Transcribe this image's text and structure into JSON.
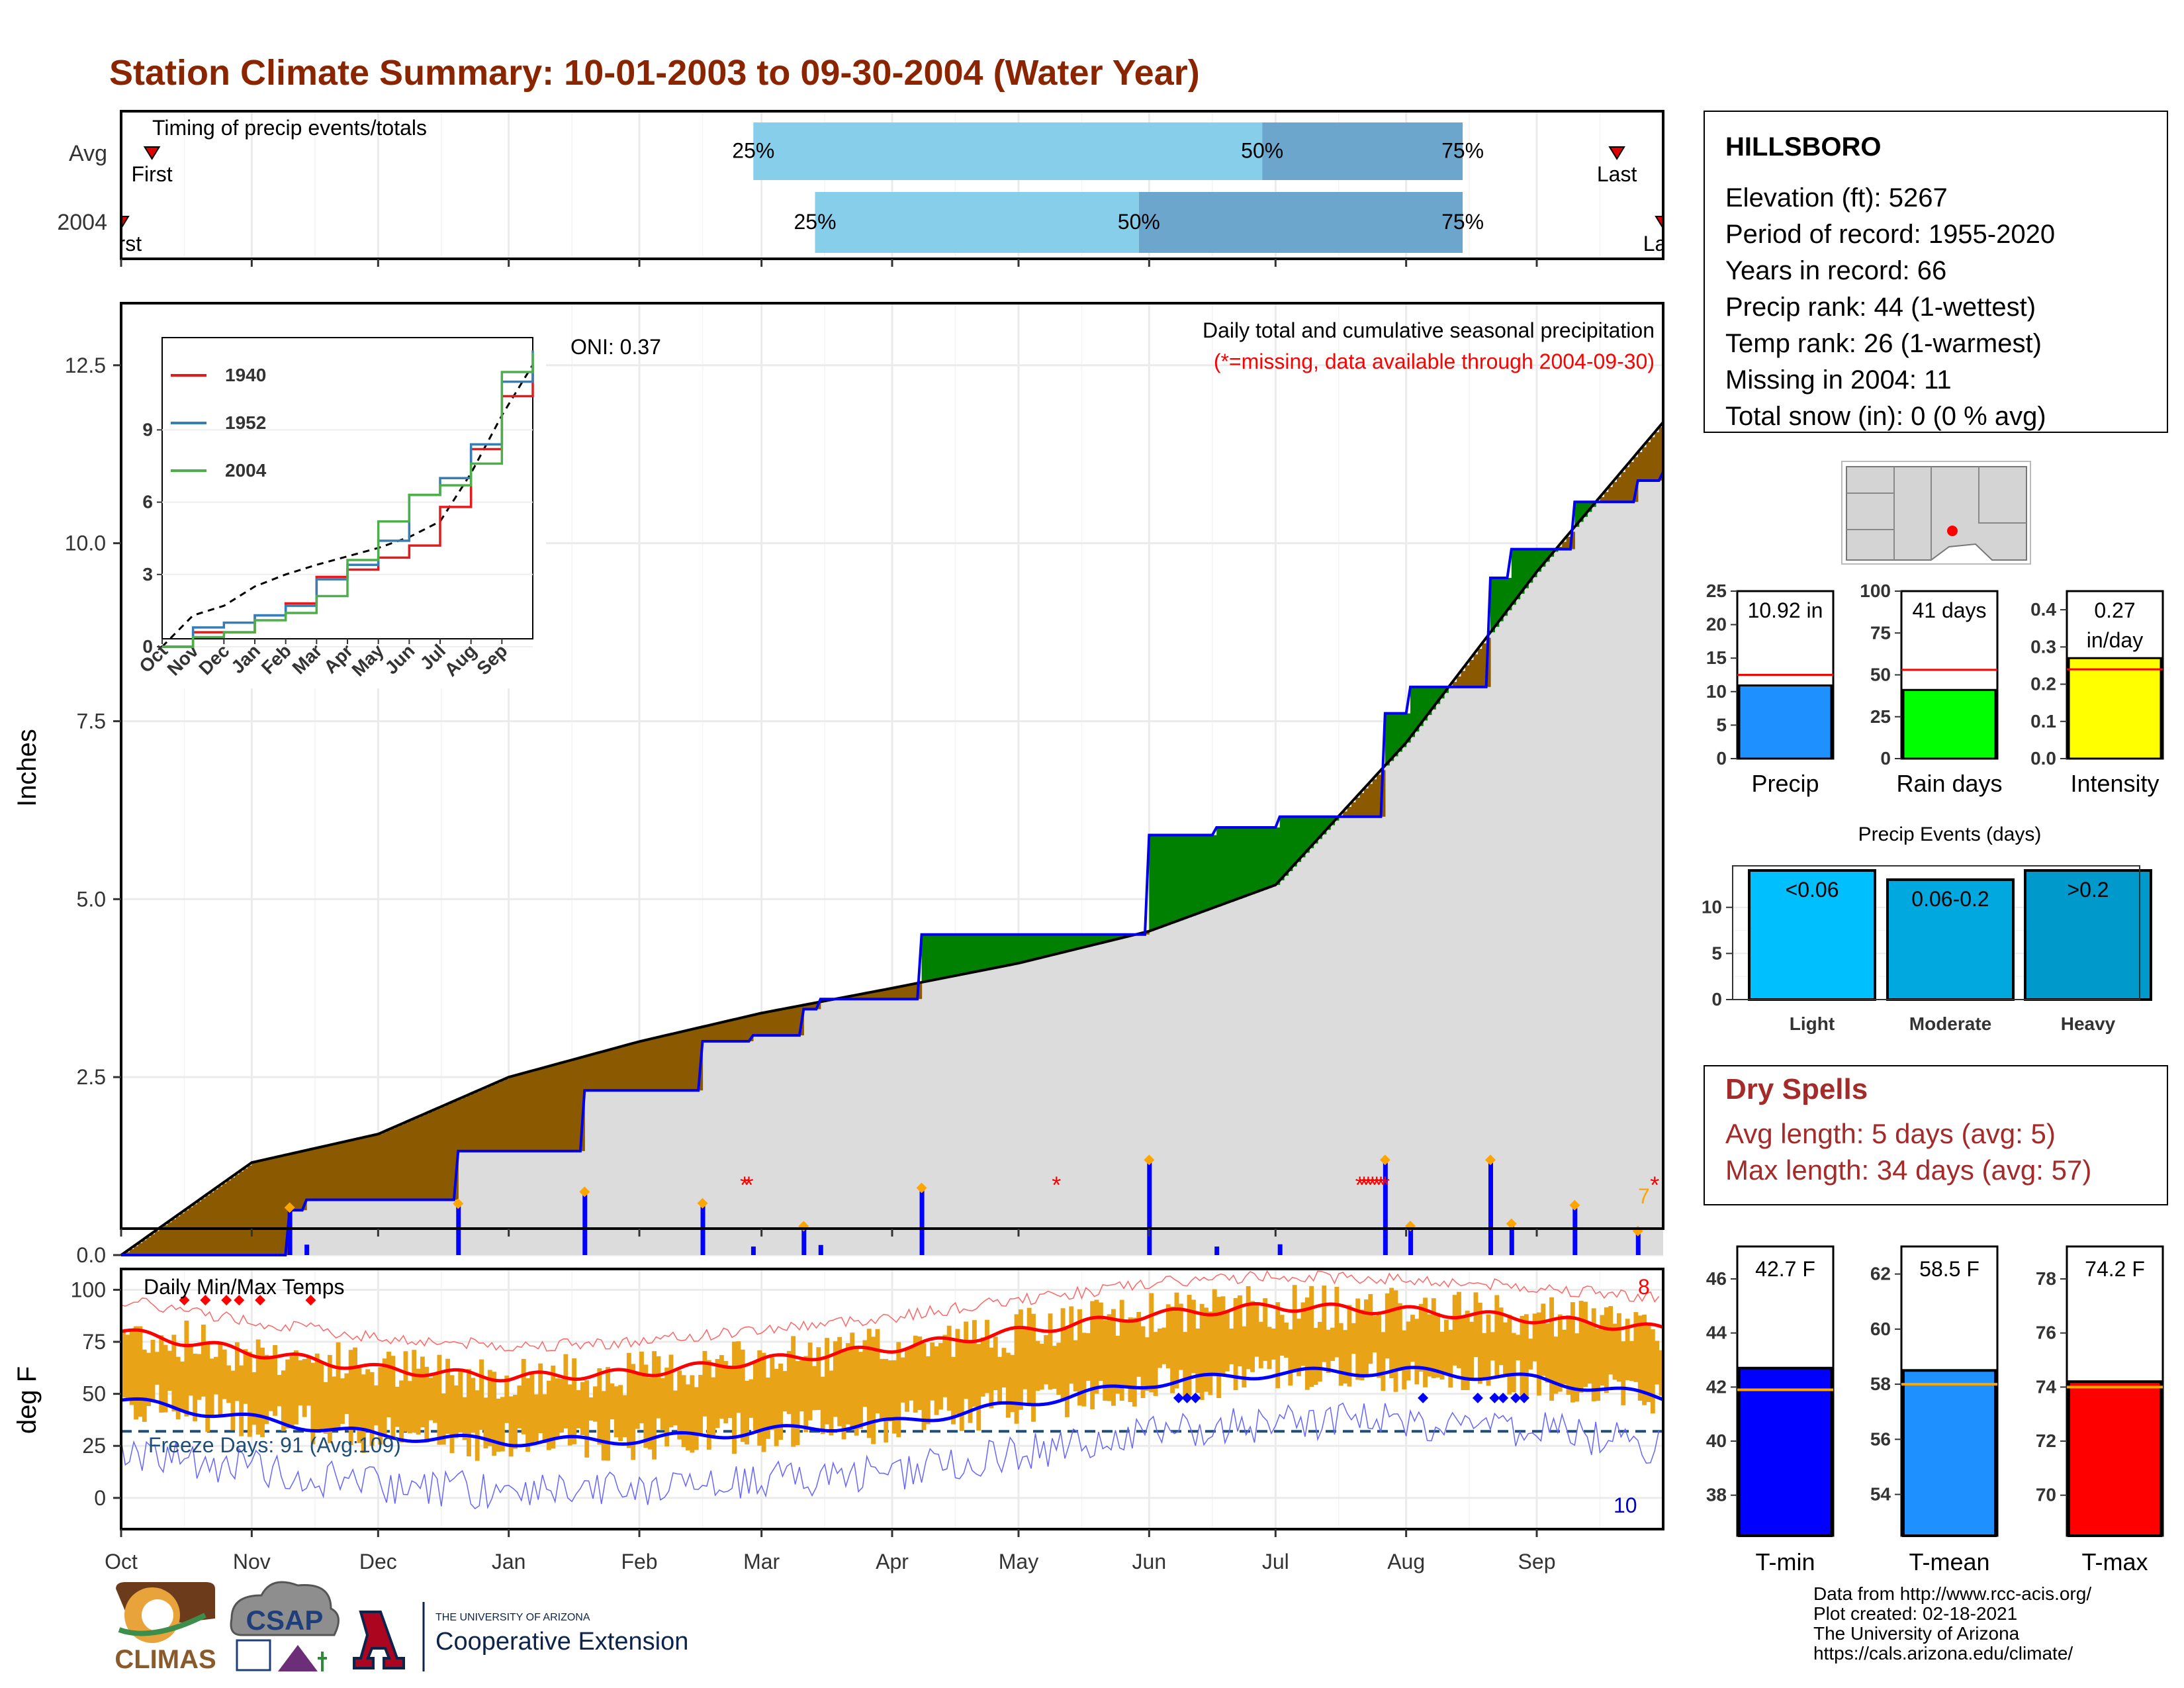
{
  "title": "Station Climate Summary: 10-01-2003 to 09-30-2004 (Water Year)",
  "timing": {
    "label": "Timing of precip events/totals",
    "rows": [
      {
        "name": "Avg",
        "first_label": "First",
        "last_label": "Last",
        "p25": 0.41,
        "p50": 0.74,
        "p75": 0.87,
        "first": 0.02,
        "last": 0.97
      },
      {
        "name": "2004",
        "first_label": "First",
        "last_label": "Last",
        "p25": 0.45,
        "p50": 0.66,
        "p75": 0.87,
        "first": 0.0,
        "last": 1.0
      }
    ],
    "pct_labels": [
      "25%",
      "50%",
      "75%"
    ]
  },
  "precip": {
    "ylabel": "Inches",
    "yticks": [
      "0.0",
      "2.5",
      "5.0",
      "7.5",
      "10.0",
      "12.5"
    ],
    "note1": "Daily total and cumulative seasonal precipitation",
    "note2": "(*=missing, data available through 2004-09-30)",
    "oni": "ONI: 0.37",
    "corner_count": "7"
  },
  "inset": {
    "yticks": [
      "0",
      "3",
      "6",
      "9"
    ],
    "xticks": [
      "Oct",
      "Nov",
      "Dec",
      "Jan",
      "Feb",
      "Mar",
      "Apr",
      "May",
      "Jun",
      "Jul",
      "Aug",
      "Sep"
    ],
    "legend": [
      {
        "name": "1940",
        "color": "#e41a1c"
      },
      {
        "name": "1952",
        "color": "#377eb8"
      },
      {
        "name": "2004",
        "color": "#4daf4a"
      }
    ]
  },
  "temps": {
    "ylabel": "deg F",
    "label": "Daily Min/Max Temps",
    "freeze": "Freeze Days: 91 (Avg:109)",
    "count_hot": "8",
    "count_cold": "10",
    "yticks": [
      "0",
      "25",
      "50",
      "75",
      "100"
    ]
  },
  "months": [
    "Oct",
    "Nov",
    "Dec",
    "Jan",
    "Feb",
    "Mar",
    "Apr",
    "May",
    "Jun",
    "Jul",
    "Aug",
    "Sep"
  ],
  "station": {
    "name": "HILLSBORO",
    "lines": [
      "Elevation (ft): 5267",
      "Period of record: 1955-2020",
      "Years in record: 66",
      "Precip rank: 44 (1-wettest)",
      "Temp rank: 26 (1-warmest)",
      "Missing in 2004: 11",
      "Total snow (in): 0 (0 % avg)"
    ]
  },
  "minibars": [
    {
      "name": "Precip",
      "value_label": "10.92 in",
      "value": 10.92,
      "avg": 12.5,
      "ymax": 25,
      "ticks": [
        "0",
        "5",
        "10",
        "15",
        "20",
        "25"
      ],
      "color": "#1E90FF"
    },
    {
      "name": "Rain days",
      "value_label": "41 days",
      "value": 41,
      "avg": 53,
      "ymax": 100,
      "ticks": [
        "0",
        "25",
        "50",
        "75",
        "100"
      ],
      "color": "#00FF00"
    },
    {
      "name": "Intensity",
      "value_label": "0.27 in/day",
      "value_line1": "0.27",
      "value_line2": "in/day",
      "value": 0.27,
      "avg": 0.24,
      "ymax": 0.45,
      "ticks": [
        "0.0",
        "0.1",
        "0.2",
        "0.3",
        "0.4"
      ],
      "color": "#FFFF00"
    }
  ],
  "events": {
    "title": "Precip Events (days)",
    "ticks": [
      "0",
      "5",
      "10"
    ],
    "bars": [
      {
        "name": "Light",
        "label": "<0.06",
        "value": 14,
        "color": "#00BFFF"
      },
      {
        "name": "Moderate",
        "label": "0.06-0.2",
        "value": 13,
        "color": "#00A8E0"
      },
      {
        "name": "Heavy",
        "label": ">0.2",
        "value": 14,
        "color": "#0099CC"
      }
    ]
  },
  "dry": {
    "title": "Dry Spells",
    "avg": "Avg length: 5 days (avg: 5)",
    "max": "Max length: 34 days (avg: 57)"
  },
  "tbars": [
    {
      "name": "T-min",
      "value_label": "42.7 F",
      "value": 42.7,
      "avg": 41.9,
      "ymin": 36.5,
      "ymax": 47.2,
      "ticks": [
        "38",
        "40",
        "42",
        "44",
        "46"
      ],
      "color": "#0000FF"
    },
    {
      "name": "T-mean",
      "value_label": "58.5 F",
      "value": 58.5,
      "avg": 58.0,
      "ymin": 52.5,
      "ymax": 63.0,
      "ticks": [
        "54",
        "56",
        "58",
        "60",
        "62"
      ],
      "color": "#1E90FF"
    },
    {
      "name": "T-max",
      "value_label": "74.2 F",
      "value": 74.2,
      "avg": 74.0,
      "ymin": 68.5,
      "ymax": 79.2,
      "ticks": [
        "70",
        "72",
        "74",
        "76",
        "78"
      ],
      "color": "#FF0000"
    }
  ],
  "credits": [
    "Data from http://www.rcc-acis.org/",
    "Plot created: 02-18-2021",
    "The University of Arizona",
    "https://cals.arizona.edu/climate/"
  ],
  "logos": {
    "climas": "CLIMAS",
    "csap": "CSAP",
    "ua_small": "THE UNIVERSITY OF ARIZONA",
    "ua_big": "Cooperative Extension"
  },
  "chart_data": [
    {
      "type": "area",
      "title": "Daily total and cumulative seasonal precipitation",
      "ylabel": "Inches",
      "ylim": [
        0,
        13
      ],
      "x": [
        "Oct",
        "Nov",
        "Dec",
        "Jan",
        "Feb",
        "Mar",
        "Apr",
        "May",
        "Jun",
        "Jul",
        "Aug",
        "Sep",
        "end"
      ],
      "series": [
        {
          "values": [
            0.0,
            0.3,
            1.4,
            1.5,
            2.9,
            3.1,
            4.2,
            5.5,
            5.9,
            6.1,
            7.9,
            10.4,
            11.0
          ]
        },
        {
          "values": [
            0.0,
            1.3,
            1.7,
            2.5,
            3.0,
            3.4,
            3.75,
            4.1,
            4.55,
            5.2,
            7.2,
            9.6,
            11.7
          ]
        }
      ]
    },
    {
      "type": "line",
      "title": "Daily Min/Max Temps",
      "ylabel": "deg F",
      "ylim": [
        -15,
        110
      ],
      "x": [
        "Oct",
        "Nov",
        "Dec",
        "Jan",
        "Feb",
        "Mar",
        "Apr",
        "May",
        "Jun",
        "Jul",
        "Aug",
        "Sep",
        "end"
      ],
      "series": [
        {
          "values": [
            80,
            70,
            62,
            58,
            60,
            66,
            72,
            80,
            88,
            92,
            90,
            86,
            81
          ]
        },
        {
          "values": [
            47,
            38,
            30,
            27,
            28,
            32,
            36,
            45,
            55,
            60,
            61,
            57,
            48
          ]
        }
      ]
    }
  ]
}
